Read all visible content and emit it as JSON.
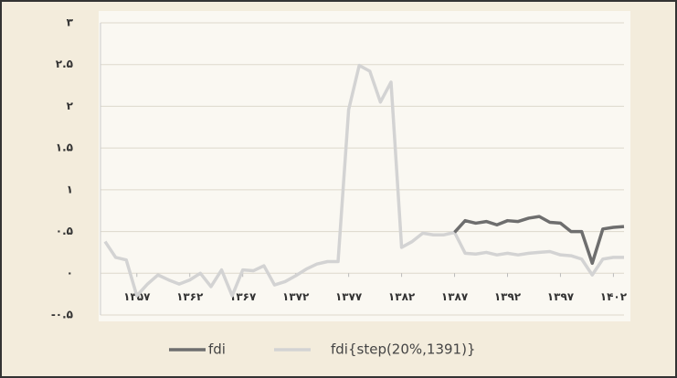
{
  "chart_data": {
    "type": "line",
    "x": [
      1354,
      1355,
      1356,
      1357,
      1358,
      1359,
      1360,
      1361,
      1362,
      1363,
      1364,
      1365,
      1366,
      1367,
      1368,
      1369,
      1370,
      1371,
      1372,
      1373,
      1374,
      1375,
      1376,
      1377,
      1378,
      1379,
      1380,
      1381,
      1382,
      1383,
      1384,
      1385,
      1386,
      1387,
      1388,
      1389,
      1390,
      1391,
      1392,
      1393,
      1394,
      1395,
      1396,
      1397,
      1398,
      1399,
      1400,
      1401,
      1402,
      1403
    ],
    "series": [
      {
        "name": "fdi",
        "color": "#6e6e6e",
        "values": [
          null,
          null,
          null,
          null,
          null,
          null,
          null,
          null,
          null,
          null,
          null,
          null,
          null,
          null,
          null,
          null,
          null,
          null,
          null,
          null,
          null,
          null,
          null,
          null,
          null,
          null,
          null,
          null,
          null,
          null,
          null,
          null,
          null,
          0.49,
          0.63,
          0.6,
          0.62,
          0.58,
          0.63,
          0.62,
          0.66,
          0.68,
          0.61,
          0.6,
          0.5,
          0.5,
          0.12,
          0.53,
          0.55,
          0.56
        ]
      },
      {
        "name": "fdi{step(20%,1391)}",
        "color": "#d3d3d3",
        "values": [
          0.38,
          0.19,
          0.16,
          -0.27,
          -0.13,
          -0.02,
          -0.08,
          -0.13,
          -0.08,
          0,
          -0.16,
          0.04,
          -0.27,
          0.04,
          0.03,
          0.09,
          -0.14,
          -0.1,
          -0.03,
          0.05,
          0.11,
          0.14,
          0.14,
          1.96,
          2.49,
          2.42,
          2.05,
          2.29,
          0.31,
          0.38,
          0.48,
          0.46,
          0.46,
          0.49,
          0.24,
          0.23,
          0.25,
          0.22,
          0.24,
          0.22,
          0.24,
          0.25,
          0.26,
          0.22,
          0.21,
          0.17,
          -0.02,
          0.17,
          0.19,
          0.19
        ]
      }
    ],
    "xlim": [
      1354,
      1403
    ],
    "xticks": [
      {
        "value": 1357,
        "label": "۱۳۵۷"
      },
      {
        "value": 1362,
        "label": "۱۳۶۲"
      },
      {
        "value": 1367,
        "label": "۱۳۶۷"
      },
      {
        "value": 1372,
        "label": "۱۳۷۲"
      },
      {
        "value": 1377,
        "label": "۱۳۷۷"
      },
      {
        "value": 1382,
        "label": "۱۳۸۲"
      },
      {
        "value": 1387,
        "label": "۱۳۸۷"
      },
      {
        "value": 1392,
        "label": "۱۳۹۲"
      },
      {
        "value": 1397,
        "label": "۱۳۹۷"
      },
      {
        "value": 1402,
        "label": "۱۴۰۲"
      }
    ],
    "ylim": [
      -0.5,
      3
    ],
    "yticks": [
      {
        "value": -0.5,
        "label": "-۰.۵"
      },
      {
        "value": 0,
        "label": "۰"
      },
      {
        "value": 0.5,
        "label": "۰.۵"
      },
      {
        "value": 1,
        "label": "۱"
      },
      {
        "value": 1.5,
        "label": "۱.۵"
      },
      {
        "value": 2,
        "label": "۲"
      },
      {
        "value": 2.5,
        "label": "۲.۵"
      },
      {
        "value": 3,
        "label": "۳"
      }
    ],
    "grid": true
  }
}
